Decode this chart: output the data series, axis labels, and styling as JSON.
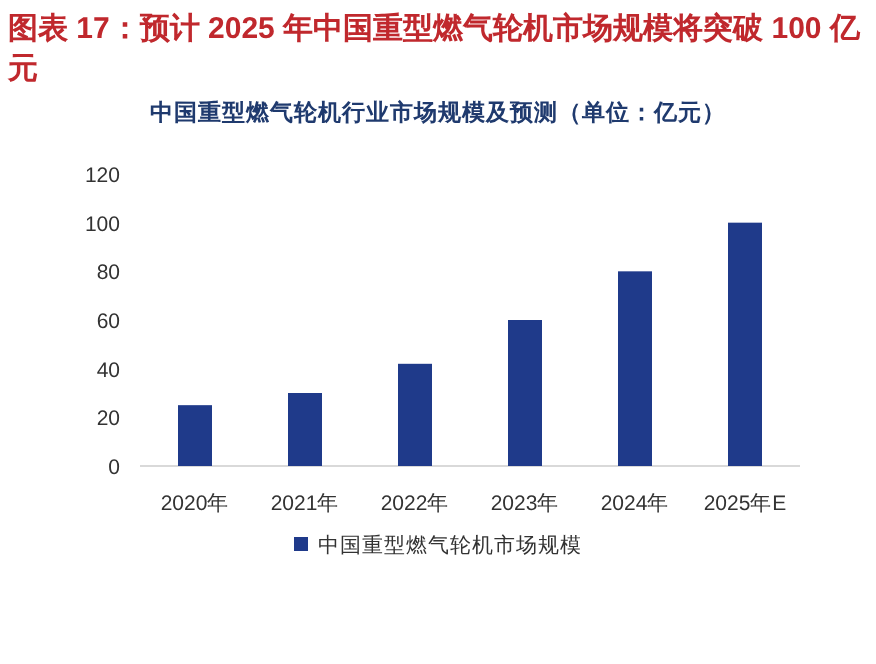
{
  "chart_data": {
    "type": "bar",
    "title": "图表 17：预计 2025 年中国重型燃气轮机市场规模将突破 100 亿元",
    "subtitle": "中国重型燃气轮机行业市场规模及预测（单位：亿元）",
    "categories": [
      "2020年",
      "2021年",
      "2022年",
      "2023年",
      "2024年",
      "2025年E"
    ],
    "series": [
      {
        "name": "中国重型燃气轮机市场规模",
        "color": "#1f3a8a",
        "values": [
          25,
          30,
          42,
          60,
          80,
          100
        ]
      }
    ],
    "ylim": [
      0,
      120
    ],
    "yticks": [
      0,
      20,
      40,
      60,
      80,
      100,
      120
    ],
    "grid": false,
    "legend": "bottom"
  }
}
